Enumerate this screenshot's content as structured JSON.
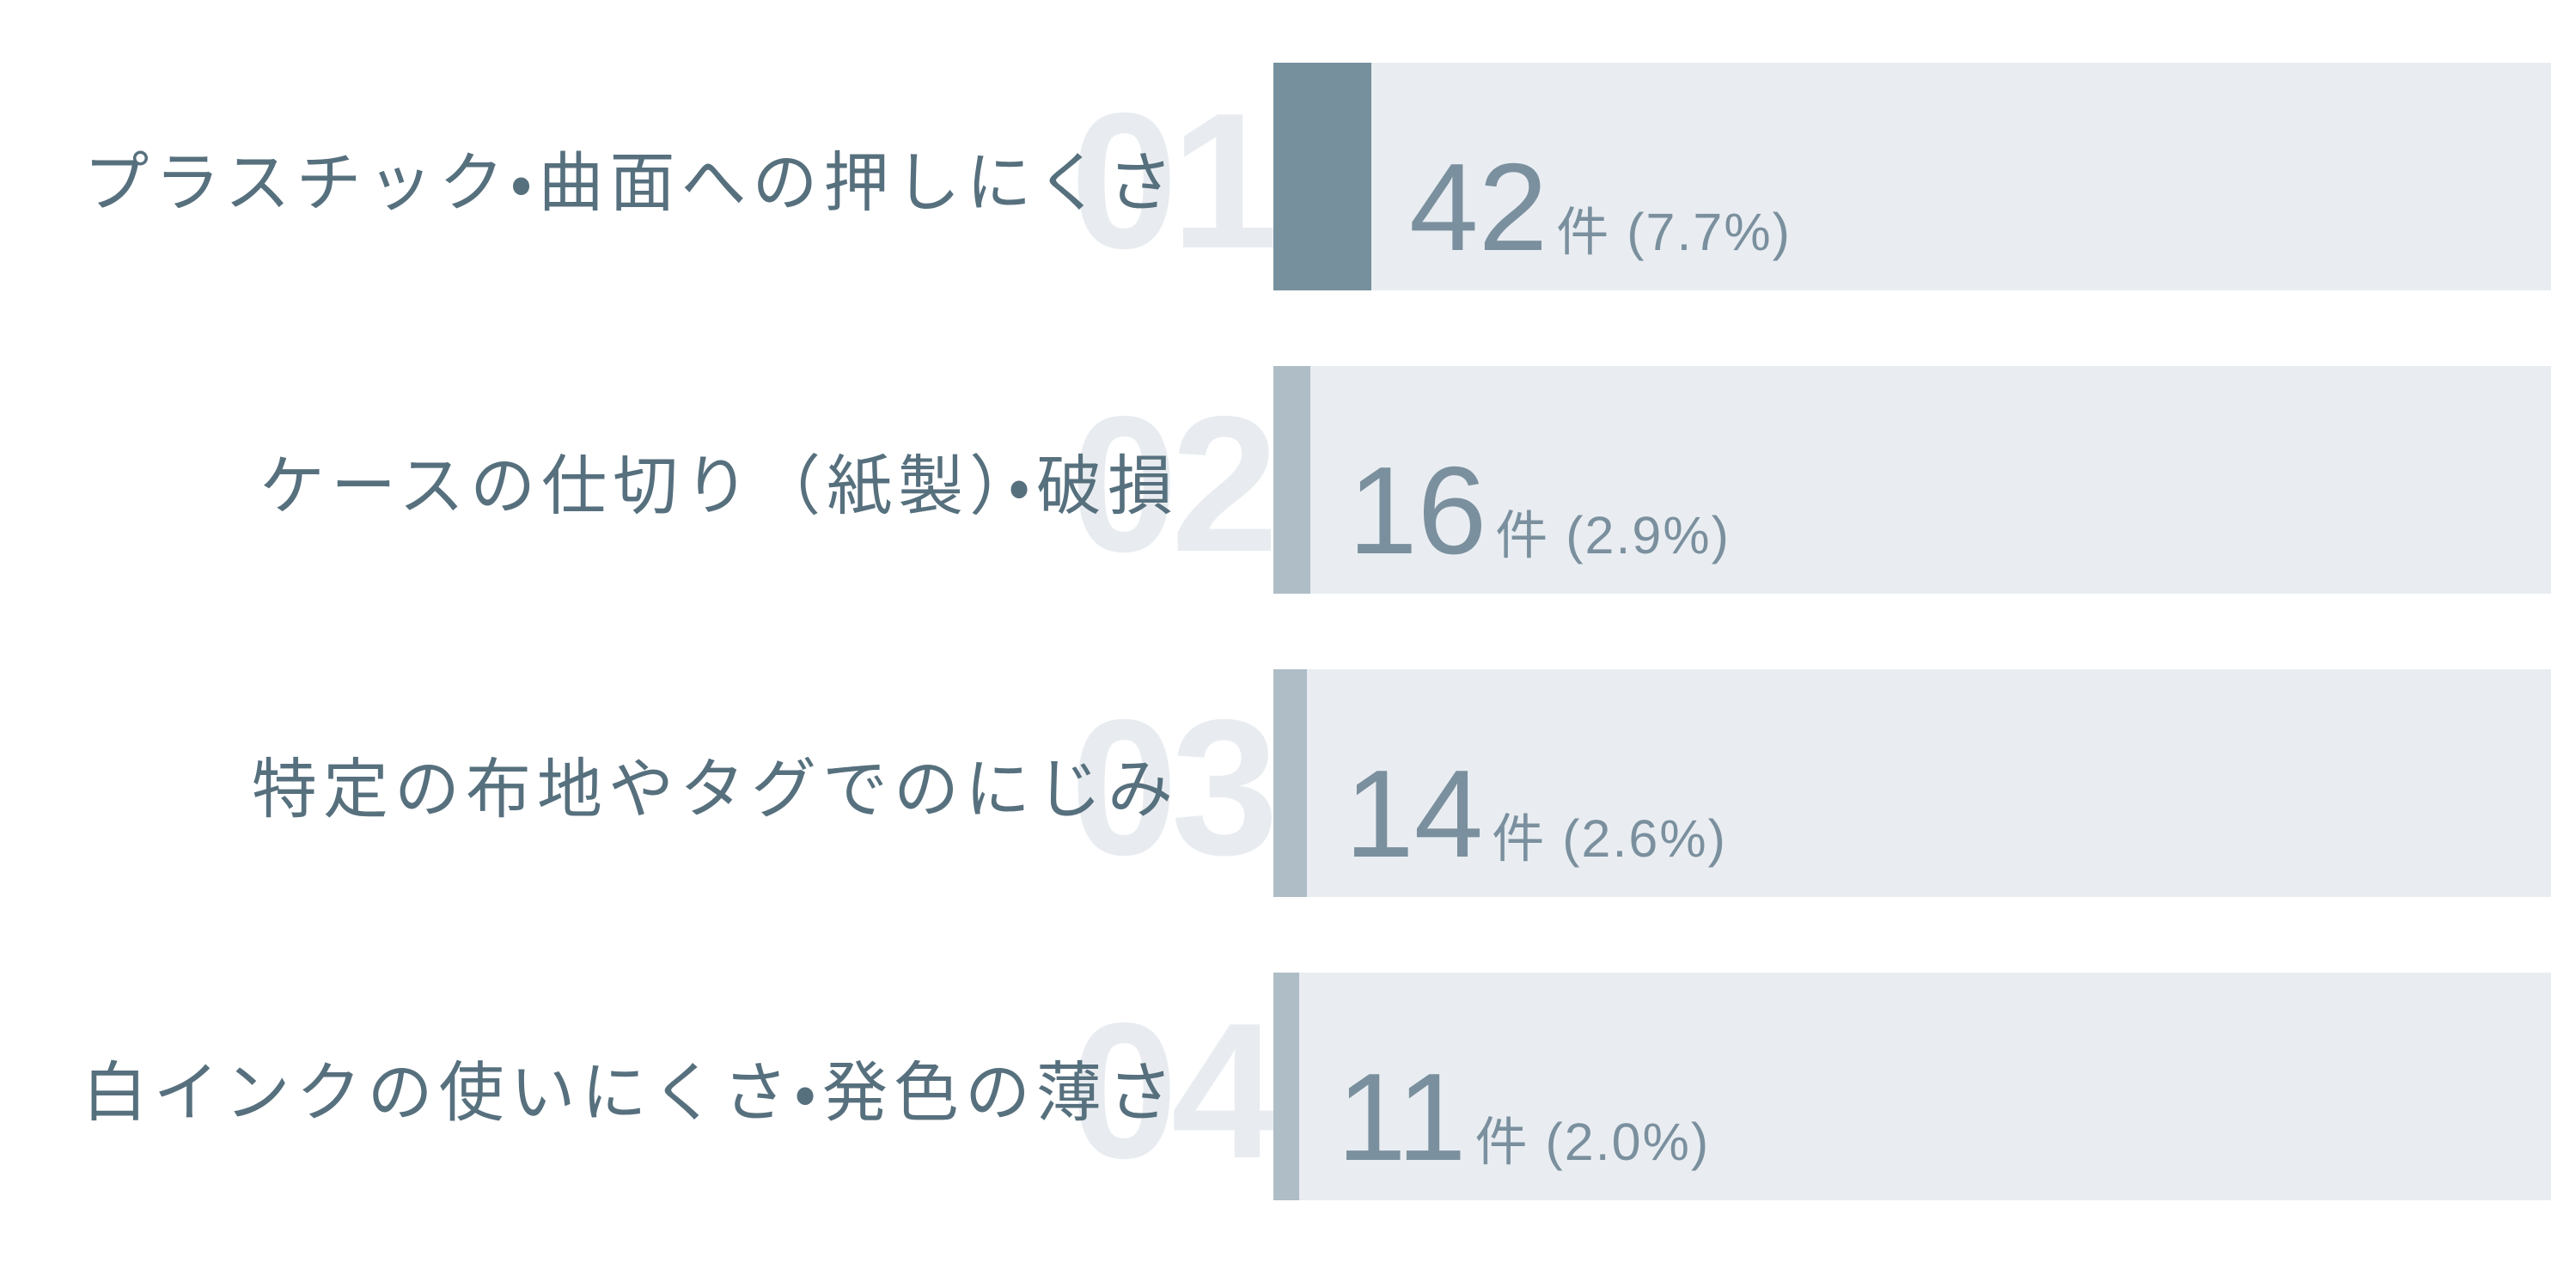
{
  "colors": {
    "background": "#FFFFFF",
    "bar_track": "#E9EDF1",
    "bar_fill_emphasis": "#76909D",
    "bar_fill_default": "#AEBDC6",
    "label_text": "#57707E",
    "value_text": "#7B909E",
    "rank_number_text": "#E8ECF0"
  },
  "chart_data": {
    "type": "bar",
    "orientation": "horizontal",
    "title": "",
    "value_unit": "件",
    "categories": [
      "プラスチック・曲面への押しにくさ",
      "ケースの仕切り（紙製）・破損",
      "特定の布地やタグでのにじみ",
      "白インクの使いにくさ・発色の薄さ"
    ],
    "values": [
      42,
      16,
      14,
      11
    ],
    "percentages": [
      7.7,
      2.9,
      2.6,
      2.0
    ],
    "xlim_percent": [
      0,
      100
    ],
    "grid": false,
    "legend": false,
    "items": [
      {
        "rank": "01",
        "label": "プラスチック・曲面への押しにくさ",
        "value": 42,
        "value_text": "42",
        "detail_text": "件 (7.7%)",
        "percent": 7.7,
        "emphasis": true
      },
      {
        "rank": "02",
        "label": "ケースの仕切り（紙製）・破損",
        "value": 16,
        "value_text": "16",
        "detail_text": "件 (2.9%)",
        "percent": 2.9,
        "emphasis": false
      },
      {
        "rank": "03",
        "label": "特定の布地やタグでのにじみ",
        "value": 14,
        "value_text": "14",
        "detail_text": "件 (2.6%)",
        "percent": 2.6,
        "emphasis": false
      },
      {
        "rank": "04",
        "label": "白インクの使いにくさ・発色の薄さ",
        "value": 11,
        "value_text": "11",
        "detail_text": "件 (2.0%)",
        "percent": 2.0,
        "emphasis": false
      }
    ]
  }
}
